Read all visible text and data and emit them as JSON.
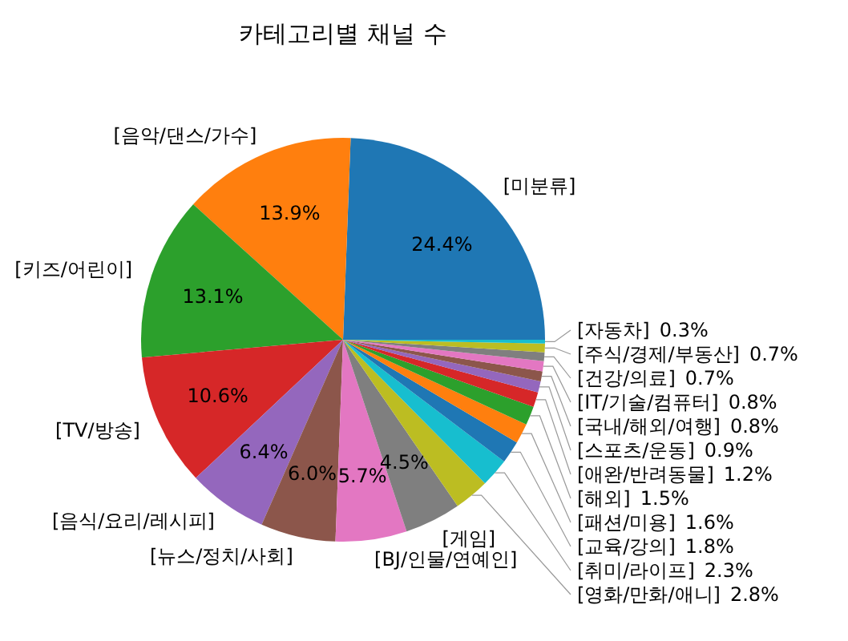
{
  "chart_data": {
    "type": "pie",
    "title": "카테고리별 채널 수",
    "categories": [
      "[미분류]",
      "[음악/댄스/가수]",
      "[키즈/어린이]",
      "[TV/방송]",
      "[음식/요리/레시피]",
      "[뉴스/정치/사회]",
      "[BJ/인물/연예인]",
      "[게임]",
      "[영화/만화/애니]",
      "[취미/라이프]",
      "[교육/강의]",
      "[패션/미용]",
      "[해외]",
      "[애완/반려동물]",
      "[스포츠/운동]",
      "[국내/해외/여행]",
      "[IT/기술/컴퓨터]",
      "[건강/의료]",
      "[주식/경제/부동산]",
      "[자동차]"
    ],
    "values": [
      24.4,
      13.9,
      13.1,
      10.6,
      6.4,
      6.0,
      5.7,
      4.5,
      2.8,
      2.3,
      1.8,
      1.6,
      1.5,
      1.2,
      0.9,
      0.8,
      0.8,
      0.7,
      0.7,
      0.3
    ],
    "value_labels": [
      "24.4%",
      "13.9%",
      "13.1%",
      "10.6%",
      "6.4%",
      "6.0%",
      "5.7%",
      "4.5%",
      "2.8%",
      "2.3%",
      "1.8%",
      "1.6%",
      "1.5%",
      "1.2%",
      "0.9%",
      "0.8%",
      "0.8%",
      "0.7%",
      "0.7%",
      "0.3%"
    ],
    "colors": [
      "#1f77b4",
      "#ff7f0e",
      "#2ca02c",
      "#d62728",
      "#9467bd",
      "#8c564b",
      "#e377c2",
      "#7f7f7f",
      "#bcbd22",
      "#17becf",
      "#1f77b4",
      "#ff7f0e",
      "#2ca02c",
      "#d62728",
      "#9467bd",
      "#8c564b",
      "#e377c2",
      "#7f7f7f",
      "#bcbd22",
      "#17becf"
    ]
  }
}
